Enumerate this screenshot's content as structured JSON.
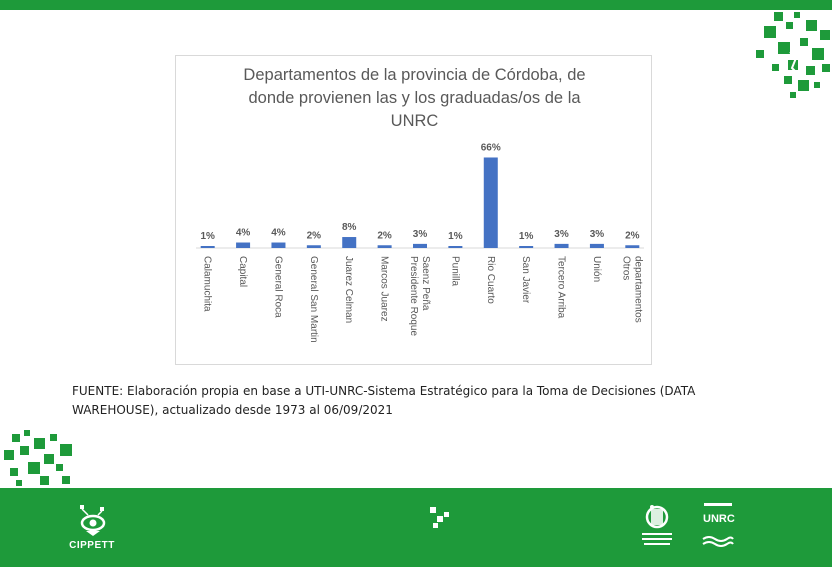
{
  "chart_data": {
    "type": "bar",
    "title": "Departamentos de la provincia de Córdoba, de donde provienen las y los graduadas/os de la UNRC",
    "title_lines": [
      "Departamentos de la provincia de Córdoba, de",
      "donde provienen las y los graduadas/os de la",
      "UNRC"
    ],
    "categories": [
      "Calamuchita",
      "Capital",
      "General Roca",
      "General San Martin",
      "Juarez Celman",
      "Marcos Juarez",
      "Presidente Roque Saenz Peña",
      "Punilla",
      "Rio Cuarto",
      "San Javier",
      "Tercero Arriba",
      "Unión",
      "Otros departamentos"
    ],
    "category_lines": [
      [
        "Calamuchita"
      ],
      [
        "Capital"
      ],
      [
        "General Roca"
      ],
      [
        "General San Martin"
      ],
      [
        "Juarez Celman"
      ],
      [
        "Marcos Juarez"
      ],
      [
        "Presidente Roque",
        "Saenz Peña"
      ],
      [
        "Punilla"
      ],
      [
        "Rio Cuarto"
      ],
      [
        "San Javier"
      ],
      [
        "Tercero Arriba"
      ],
      [
        "Unión"
      ],
      [
        "Otros",
        "departamentos"
      ]
    ],
    "values": [
      1,
      4,
      4,
      2,
      8,
      2,
      3,
      1,
      66,
      1,
      3,
      3,
      2
    ],
    "data_labels": [
      "1%",
      "4%",
      "4%",
      "2%",
      "8%",
      "2%",
      "3%",
      "1%",
      "66%",
      "1%",
      "3%",
      "3%",
      "2%"
    ],
    "unit": "%",
    "ylim": [
      0,
      70
    ],
    "grid": false,
    "legend": "none",
    "bar_color": "#4472c4"
  },
  "source_note": "FUENTE: Elaboración propia en base a UTI-UNRC-Sistema Estratégico para la Toma de Decisiones (DATA WAREHOUSE), actualizado desde 1973 al 06/09/2021",
  "footer": {
    "cippett_label": "CIPPETT",
    "unrc_label": "UNRC"
  },
  "colors": {
    "brand_green": "#1e9a3a",
    "title_gray": "#595959",
    "label_gray": "#595959"
  },
  "icons": [
    "pixel-cluster-icon",
    "cippett-logo-icon",
    "pixel-mark-icon",
    "education-logo-icon",
    "unrc-logo-icon"
  ]
}
